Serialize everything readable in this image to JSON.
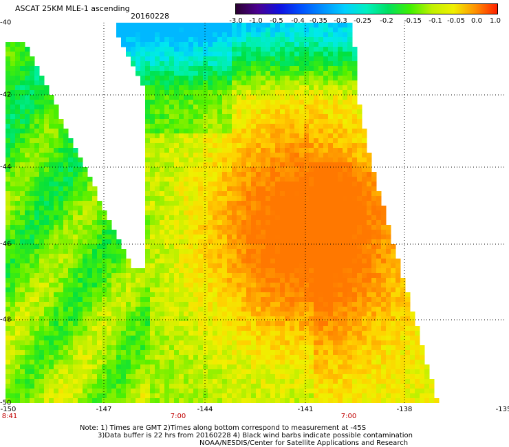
{
  "header": {
    "title": "ASCAT 25KM MLE-1 ascending",
    "date": "20160228"
  },
  "colorbar": {
    "ticks": [
      "-3.0",
      "-1.0",
      "-0.5",
      "-0.4",
      "-0.35",
      "-0.3",
      "-0.25",
      "-0.2",
      "-0.15",
      "-0.1",
      "-0.05",
      "0.0",
      "1.0"
    ],
    "colors": [
      "#2a0030",
      "#4a0090",
      "#1010e0",
      "#0050ff",
      "#0090ff",
      "#00d0ff",
      "#00f0c0",
      "#00e060",
      "#40f000",
      "#c0f000",
      "#f0f000",
      "#ff9000",
      "#ff2000"
    ]
  },
  "map": {
    "lat_labels": [
      "-40",
      "-42",
      "-44",
      "-46",
      "-48",
      "-50"
    ],
    "lon_labels": [
      "-150",
      "-147",
      "-144",
      "-141",
      "-138",
      "-135"
    ],
    "time_labels": [
      "8:41",
      "7:00",
      "7:00"
    ]
  },
  "notes": {
    "line1": "Note: 1) Times are GMT 2)Times along bottom correspond to measurement at -45S",
    "line2": "3)Data buffer is 22 hrs from 20160228 4) Black wind barbs indicate possible contamination",
    "line3": "NOAA/NESDIS/Center for Satellite Applications and Research"
  }
}
